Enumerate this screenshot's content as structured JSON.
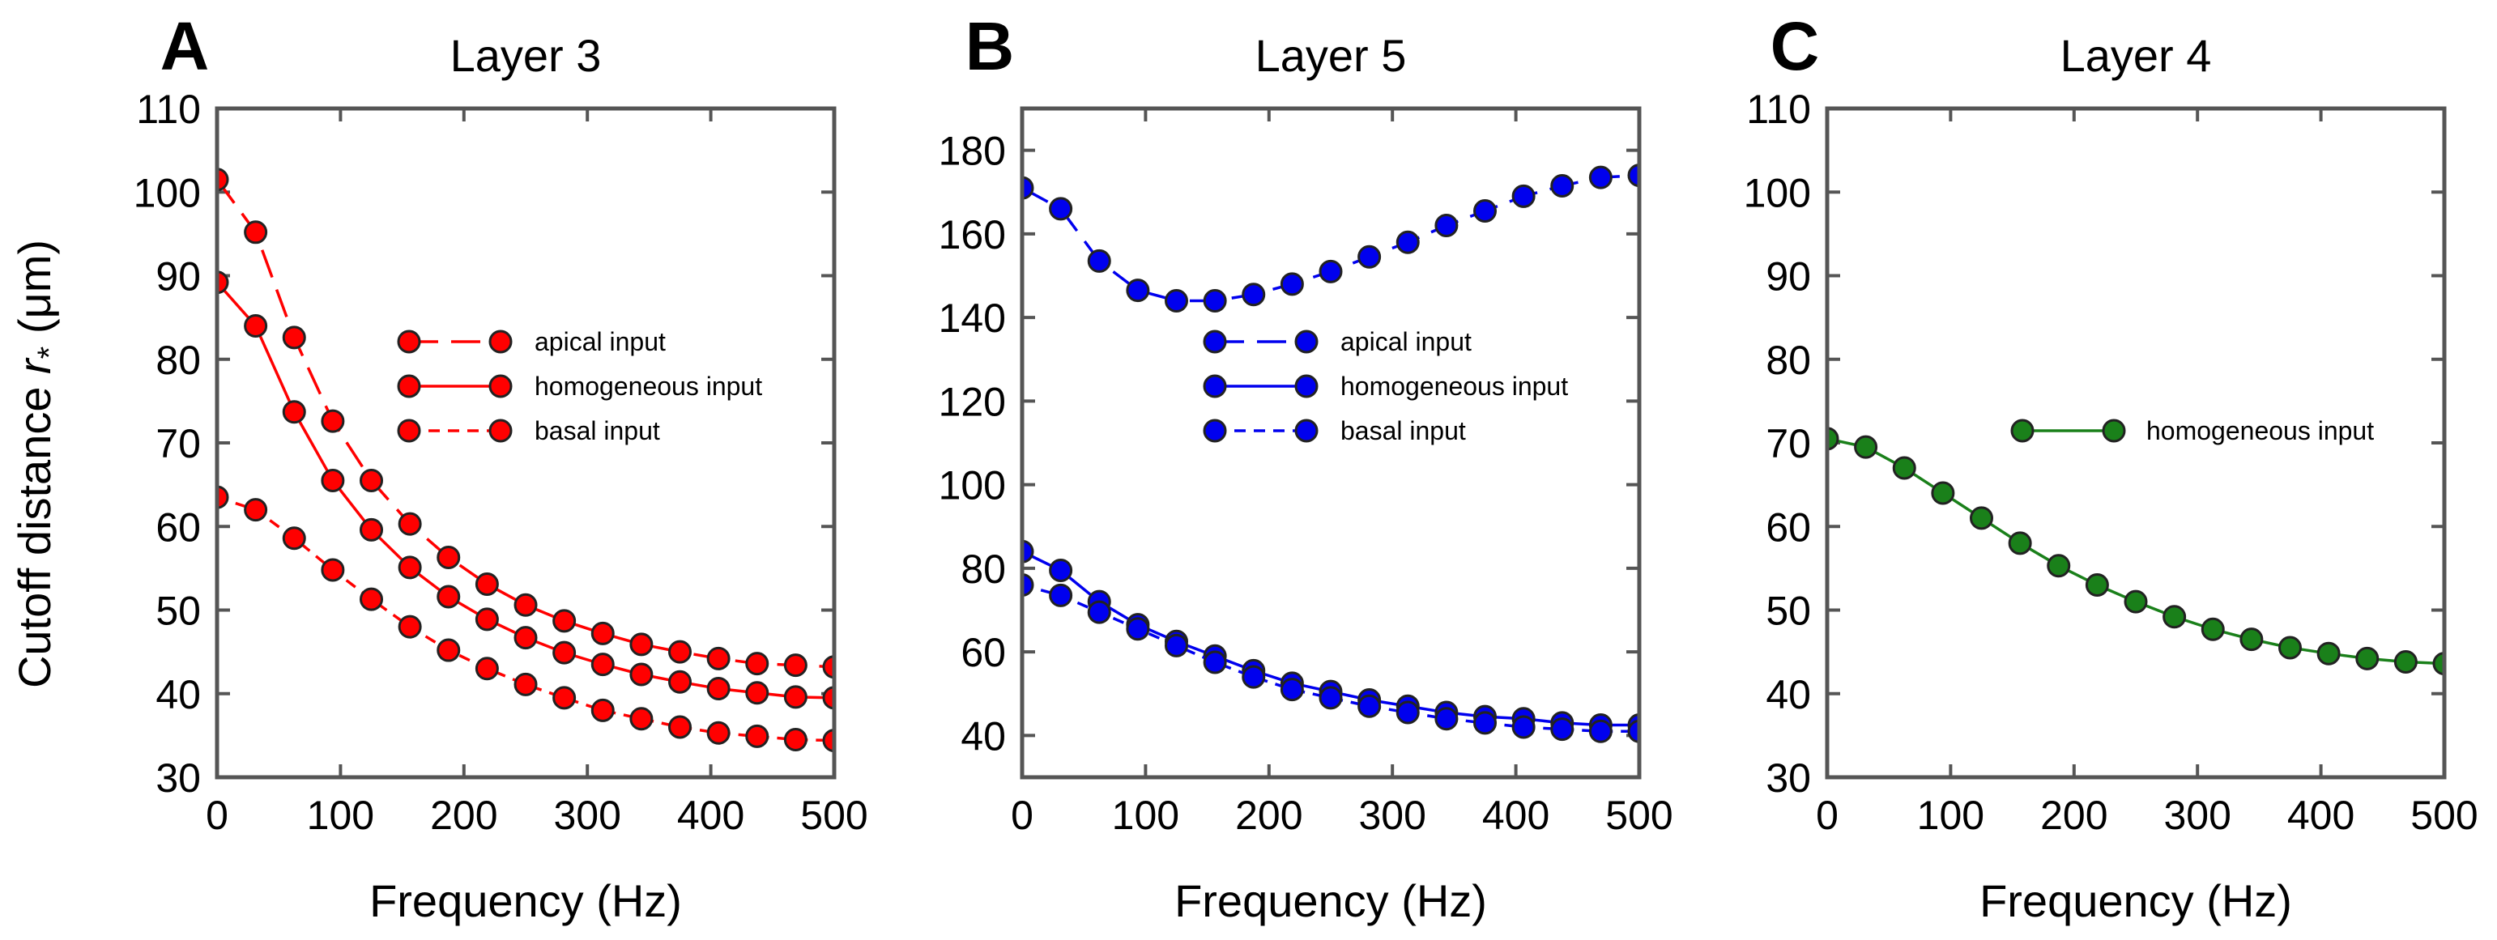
{
  "figure": {
    "ylabel_prefix": "Cutoff distance ",
    "ylabel_symbol": "r",
    "ylabel_subscript": "*",
    "ylabel_unit": " (μm)"
  },
  "chart_data": [
    {
      "type": "line",
      "letter": "A",
      "title": "Layer 3",
      "xlabel": "Frequency (Hz)",
      "xlim": [
        0,
        500
      ],
      "ylim": [
        30,
        110
      ],
      "xticks": [
        0,
        100,
        200,
        300,
        400,
        500
      ],
      "yticks": [
        30,
        40,
        50,
        60,
        70,
        80,
        90,
        100,
        110
      ],
      "x": [
        0,
        31.25,
        62.5,
        93.75,
        125,
        156.25,
        187.5,
        218.75,
        250,
        281.25,
        312.5,
        343.75,
        375,
        406.25,
        437.5,
        468.75,
        500
      ],
      "color": "#ff0000",
      "legend_position": "center-right",
      "series": [
        {
          "name": "apical input",
          "dash": "long-dash",
          "values": [
            101.5,
            95.2,
            82.6,
            72.6,
            65.5,
            60.3,
            56.3,
            53.1,
            50.6,
            48.7,
            47.2,
            45.9,
            45.0,
            44.2,
            43.6,
            43.4,
            43.2
          ]
        },
        {
          "name": "homogeneous input",
          "dash": "solid",
          "values": [
            89.2,
            84.0,
            73.7,
            65.5,
            59.6,
            55.1,
            51.6,
            48.9,
            46.7,
            44.9,
            43.5,
            42.3,
            41.4,
            40.6,
            40.1,
            39.6,
            39.5
          ]
        },
        {
          "name": "basal input",
          "dash": "short-dash",
          "values": [
            63.5,
            62.0,
            58.6,
            54.8,
            51.3,
            48.0,
            45.2,
            43.0,
            41.1,
            39.5,
            38.0,
            37.0,
            36.0,
            35.3,
            34.9,
            34.5,
            34.4
          ]
        }
      ]
    },
    {
      "type": "line",
      "letter": "B",
      "title": "Layer 5",
      "xlabel": "Frequency (Hz)",
      "xlim": [
        0,
        500
      ],
      "ylim": [
        30,
        190
      ],
      "xticks": [
        0,
        100,
        200,
        300,
        400,
        500
      ],
      "yticks": [
        40,
        60,
        80,
        100,
        120,
        140,
        160,
        180
      ],
      "x": [
        0,
        31.25,
        62.5,
        93.75,
        125,
        156.25,
        187.5,
        218.75,
        250,
        281.25,
        312.5,
        343.75,
        375,
        406.25,
        437.5,
        468.75,
        500
      ],
      "color": "#0000ee",
      "legend_position": "center",
      "series": [
        {
          "name": "apical input",
          "dash": "long-dash",
          "values": [
            171.0,
            166.0,
            153.5,
            146.5,
            144.0,
            144.0,
            145.5,
            148.0,
            151.0,
            154.5,
            158.0,
            162.0,
            165.5,
            169.0,
            171.5,
            173.5,
            174.0
          ]
        },
        {
          "name": "homogeneous input",
          "dash": "solid",
          "values": [
            84.0,
            79.5,
            72.0,
            66.5,
            62.5,
            59.0,
            55.5,
            52.5,
            50.5,
            48.5,
            47.0,
            45.5,
            44.5,
            44.0,
            43.0,
            42.5,
            42.5
          ]
        },
        {
          "name": "basal input",
          "dash": "short-dash",
          "values": [
            76.0,
            73.5,
            69.5,
            65.5,
            61.5,
            57.5,
            54.0,
            51.0,
            49.0,
            47.0,
            45.5,
            44.0,
            43.0,
            42.0,
            41.5,
            41.0,
            41.0
          ]
        }
      ]
    },
    {
      "type": "line",
      "letter": "C",
      "title": "Layer 4",
      "xlabel": "Frequency (Hz)",
      "xlim": [
        0,
        500
      ],
      "ylim": [
        30,
        110
      ],
      "xticks": [
        0,
        100,
        200,
        300,
        400,
        500
      ],
      "yticks": [
        30,
        40,
        50,
        60,
        70,
        80,
        90,
        100,
        110
      ],
      "x": [
        0,
        31.25,
        62.5,
        93.75,
        125,
        156.25,
        187.5,
        218.75,
        250,
        281.25,
        312.5,
        343.75,
        375,
        406.25,
        437.5,
        468.75,
        500
      ],
      "color": "#1a801a",
      "legend_position": "center-right",
      "series": [
        {
          "name": "homogeneous input",
          "dash": "solid",
          "values": [
            70.5,
            69.5,
            67.0,
            64.0,
            61.0,
            58.0,
            55.3,
            53.0,
            51.0,
            49.2,
            47.7,
            46.5,
            45.5,
            44.8,
            44.2,
            43.8,
            43.6
          ]
        }
      ]
    }
  ]
}
